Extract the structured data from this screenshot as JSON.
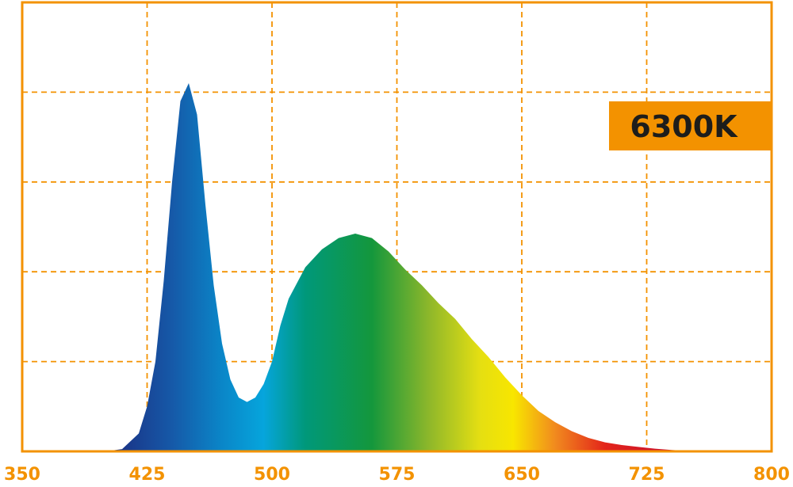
{
  "chart_data": {
    "type": "area",
    "annotation": "6300K",
    "x": [
      400,
      410,
      420,
      425,
      430,
      435,
      440,
      445,
      450,
      455,
      460,
      465,
      470,
      475,
      480,
      485,
      490,
      495,
      500,
      505,
      510,
      520,
      530,
      540,
      550,
      560,
      570,
      580,
      590,
      600,
      610,
      620,
      630,
      640,
      650,
      660,
      670,
      680,
      690,
      700,
      710,
      720,
      730,
      740,
      750,
      760
    ],
    "values": [
      0,
      0.005,
      0.04,
      0.1,
      0.2,
      0.38,
      0.6,
      0.78,
      0.82,
      0.75,
      0.55,
      0.37,
      0.24,
      0.16,
      0.12,
      0.11,
      0.12,
      0.15,
      0.2,
      0.28,
      0.34,
      0.41,
      0.45,
      0.475,
      0.485,
      0.475,
      0.445,
      0.405,
      0.37,
      0.33,
      0.295,
      0.25,
      0.21,
      0.165,
      0.125,
      0.09,
      0.065,
      0.045,
      0.03,
      0.02,
      0.014,
      0.01,
      0.006,
      0.003,
      0.001,
      0
    ],
    "xlim": [
      350,
      800
    ],
    "xticks": [
      350,
      425,
      500,
      575,
      650,
      725,
      800
    ],
    "ylim": [
      0,
      1
    ],
    "yticks": [
      0,
      0.2,
      0.4,
      0.6,
      0.8,
      1
    ],
    "grid": true,
    "color": "#f39200"
  }
}
